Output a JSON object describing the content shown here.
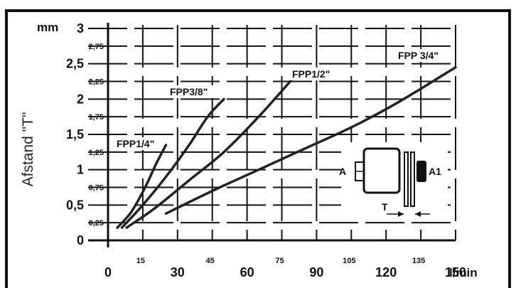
{
  "chart_data": {
    "type": "line",
    "title": "",
    "ylabel": "Afstand \"T\"",
    "y_unit": "mm",
    "x_unit": "l/min",
    "xlim": [
      0,
      150
    ],
    "ylim": [
      0,
      3
    ],
    "grid": true,
    "x_ticks_major": [
      "0",
      "30",
      "60",
      "90",
      "120",
      "150"
    ],
    "x_ticks_minor": [
      "15",
      "45",
      "75",
      "105",
      "135"
    ],
    "y_ticks_major": [
      "0",
      "0,5",
      "1",
      "1,5",
      "2",
      "2,5",
      "3"
    ],
    "y_ticks_minor": [
      "0,25",
      "0,75",
      "1,25",
      "1,75",
      "2,25",
      "2,75"
    ],
    "series": [
      {
        "name": "FPP1/4\"",
        "points": [
          [
            4,
            0.18
          ],
          [
            10,
            0.4
          ],
          [
            16,
            0.75
          ],
          [
            21,
            1.1
          ],
          [
            25,
            1.35
          ]
        ]
      },
      {
        "name": "FPP3/8\"",
        "points": [
          [
            6,
            0.18
          ],
          [
            15,
            0.5
          ],
          [
            25,
            0.9
          ],
          [
            35,
            1.35
          ],
          [
            43,
            1.75
          ],
          [
            50,
            2.0
          ]
        ]
      },
      {
        "name": "FPP1/2\"",
        "points": [
          [
            8,
            0.18
          ],
          [
            20,
            0.45
          ],
          [
            35,
            0.85
          ],
          [
            50,
            1.25
          ],
          [
            65,
            1.75
          ],
          [
            80,
            2.3
          ]
        ]
      },
      {
        "name": "FPP 3/4\"",
        "points": [
          [
            25,
            0.38
          ],
          [
            45,
            0.7
          ],
          [
            65,
            1.0
          ],
          [
            85,
            1.3
          ],
          [
            105,
            1.6
          ],
          [
            125,
            1.95
          ],
          [
            150,
            2.45
          ]
        ]
      }
    ],
    "inset": {
      "labels": [
        "A",
        "A1",
        "T"
      ]
    }
  }
}
